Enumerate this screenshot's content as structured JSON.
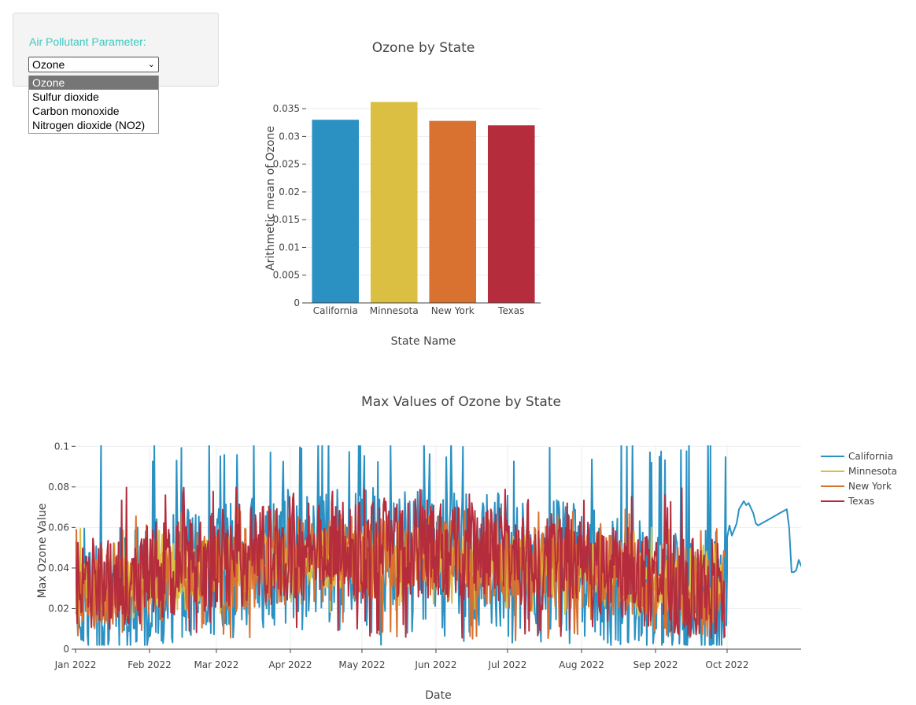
{
  "control": {
    "label": "Air Pollutant Parameter:",
    "selected": "Ozone",
    "options": [
      "Ozone",
      "Sulfur dioxide",
      "Carbon monoxide",
      "Nitrogen dioxide (NO2)"
    ]
  },
  "chart_data": [
    {
      "type": "bar",
      "title": "Ozone by State",
      "xlabel": "State Name",
      "ylabel": "Arithmetic mean of Ozone",
      "categories": [
        "California",
        "Minnesota",
        "New York",
        "Texas"
      ],
      "values": [
        0.033,
        0.0362,
        0.0328,
        0.032
      ],
      "colors": [
        "#2a91c2",
        "#dbbf43",
        "#d97130",
        "#b52d3d"
      ],
      "ylim": [
        0,
        0.037
      ],
      "yticks": [
        0,
        0.005,
        0.01,
        0.015,
        0.02,
        0.025,
        0.03,
        0.035
      ],
      "ytick_labels": [
        "0",
        "0.005",
        "0.01",
        "0.015",
        "0.02",
        "0.025",
        "0.03",
        "0.035"
      ],
      "grid": true
    },
    {
      "type": "line",
      "title": "Max Values of Ozone by State",
      "xlabel": "Date",
      "ylabel": "Max Ozone Value",
      "xlim": [
        "2022-01-01",
        "2022-11-01"
      ],
      "ylim": [
        0,
        0.1005
      ],
      "yticks": [
        0,
        0.02,
        0.04,
        0.06,
        0.08,
        0.1
      ],
      "ytick_labels": [
        "0",
        "0.02",
        "0.04",
        "0.06",
        "0.08",
        "0.1"
      ],
      "xticks": [
        "2022-01-01",
        "2022-02-01",
        "2022-03-01",
        "2022-04-01",
        "2022-05-01",
        "2022-06-01",
        "2022-07-01",
        "2022-08-01",
        "2022-09-01",
        "2022-10-01"
      ],
      "xtick_labels": [
        "Jan 2022",
        "Feb 2022",
        "Mar 2022",
        "Apr 2022",
        "May 2022",
        "Jun 2022",
        "Jul 2022",
        "Aug 2022",
        "Sep 2022",
        "Oct 2022"
      ],
      "legend_position": "top-right",
      "grid": true,
      "series": [
        {
          "name": "California",
          "color": "#2a91c2",
          "dense_until": "2022-10-01",
          "mean_low": 0.025,
          "mean_high": 0.048,
          "range": [
            0.002,
            0.104
          ],
          "tail": [
            [
              "2022-10-01",
              0.055
            ],
            [
              "2022-10-02",
              0.061
            ],
            [
              "2022-10-03",
              0.056
            ],
            [
              "2022-10-05",
              0.062
            ],
            [
              "2022-10-06",
              0.069
            ],
            [
              "2022-10-08",
              0.073
            ],
            [
              "2022-10-09",
              0.071
            ],
            [
              "2022-10-10",
              0.072
            ],
            [
              "2022-10-12",
              0.067
            ],
            [
              "2022-10-13",
              0.062
            ],
            [
              "2022-10-14",
              0.061
            ],
            [
              "2022-10-17",
              0.063
            ],
            [
              "2022-10-20",
              0.065
            ],
            [
              "2022-10-23",
              0.067
            ],
            [
              "2022-10-26",
              0.069
            ],
            [
              "2022-10-27",
              0.06
            ],
            [
              "2022-10-28",
              0.038
            ],
            [
              "2022-10-29",
              0.038
            ],
            [
              "2022-10-30",
              0.039
            ],
            [
              "2022-10-31",
              0.044
            ],
            [
              "2022-11-01",
              0.041
            ],
            [
              "2022-11-02",
              0.046
            ],
            [
              "2022-11-03",
              0.051
            ],
            [
              "2022-11-05",
              0.051
            ],
            [
              "2022-11-06",
              0.045
            ]
          ]
        },
        {
          "name": "Minnesota",
          "color": "#dbbf43",
          "dense_until": "2022-09-30",
          "mean_low": 0.03,
          "mean_high": 0.045,
          "range": [
            0.015,
            0.06
          ]
        },
        {
          "name": "New York",
          "color": "#d97130",
          "dense_until": "2022-09-30",
          "mean_low": 0.028,
          "mean_high": 0.045,
          "range": [
            0.004,
            0.07
          ]
        },
        {
          "name": "Texas",
          "color": "#b52d3d",
          "dense_until": "2022-09-30",
          "mean_low": 0.03,
          "mean_high": 0.05,
          "range": [
            0.005,
            0.08
          ]
        }
      ]
    }
  ]
}
